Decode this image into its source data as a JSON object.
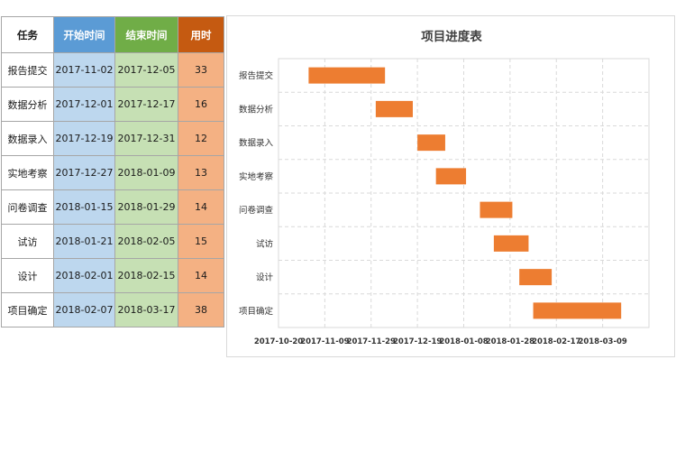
{
  "table": {
    "headers": {
      "task": "任务",
      "start": "开始时间",
      "end": "结束时间",
      "days": "用时"
    },
    "rows": [
      {
        "task": "报告提交",
        "start": "2017-11-02",
        "end": "2017-12-05",
        "days": "33"
      },
      {
        "task": "数据分析",
        "start": "2017-12-01",
        "end": "2017-12-17",
        "days": "16"
      },
      {
        "task": "数据录入",
        "start": "2017-12-19",
        "end": "2017-12-31",
        "days": "12"
      },
      {
        "task": "实地考察",
        "start": "2017-12-27",
        "end": "2018-01-09",
        "days": "13"
      },
      {
        "task": "问卷调查",
        "start": "2018-01-15",
        "end": "2018-01-29",
        "days": "14"
      },
      {
        "task": "试访",
        "start": "2018-01-21",
        "end": "2018-02-05",
        "days": "15"
      },
      {
        "task": "设计",
        "start": "2018-02-01",
        "end": "2018-02-15",
        "days": "14"
      },
      {
        "task": "项目确定",
        "start": "2018-02-07",
        "end": "2018-03-17",
        "days": "38"
      }
    ]
  },
  "colors": {
    "header_start": "#5b9bd5",
    "header_end": "#70ad47",
    "header_days": "#c55a11",
    "cell_start": "#bdd7ee",
    "cell_end": "#c6e0b4",
    "cell_days": "#f4b183",
    "bar": "#ed7d31"
  },
  "chart_data": {
    "type": "bar",
    "orientation": "horizontal",
    "stacked_gantt": true,
    "title": "项目进度表",
    "categories": [
      "报告提交",
      "数据分析",
      "数据录入",
      "实地考察",
      "问卷调查",
      "试访",
      "设计",
      "项目确定"
    ],
    "series": [
      {
        "role": "start",
        "values": [
          "2017-11-02",
          "2017-12-01",
          "2017-12-19",
          "2017-12-27",
          "2018-01-15",
          "2018-01-21",
          "2018-02-01",
          "2018-02-07"
        ]
      },
      {
        "role": "duration_days",
        "values": [
          33,
          16,
          12,
          13,
          14,
          15,
          14,
          38
        ]
      }
    ],
    "x_tick_labels": [
      "2017-10-20",
      "2017-11-09",
      "2017-11-29",
      "2017-12-19",
      "2018-01-08",
      "2018-01-28",
      "2018-02-17",
      "2018-03-09"
    ],
    "xlim": [
      "2017-10-20",
      "2018-03-29"
    ],
    "grid": true,
    "legend": "none"
  }
}
